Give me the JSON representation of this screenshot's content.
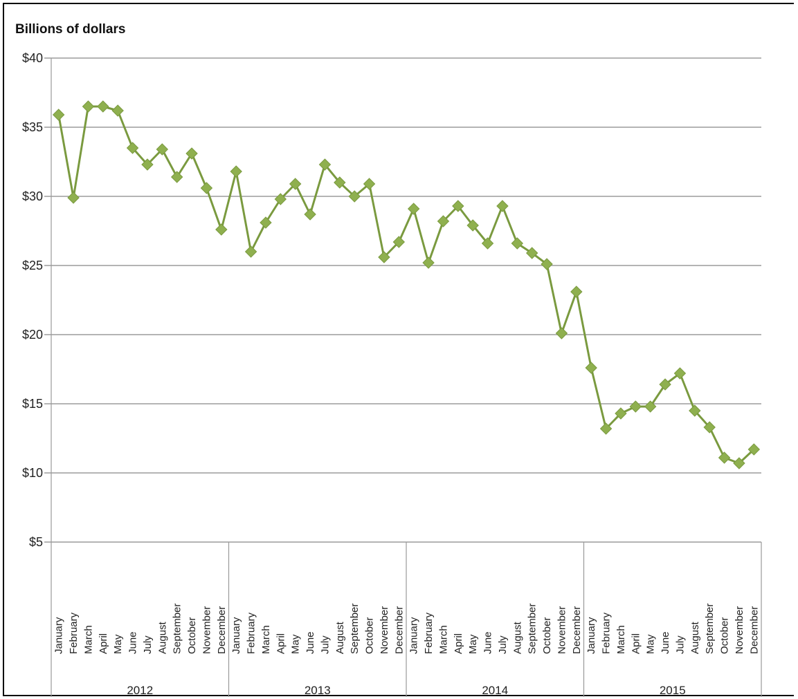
{
  "chart_data": {
    "type": "line",
    "ylabel": "Billions of dollars",
    "ylim": [
      5,
      40
    ],
    "yticks": [
      "$5",
      "$10",
      "$15",
      "$20",
      "$25",
      "$30",
      "$35",
      "$40"
    ],
    "grid": true,
    "colors": {
      "line": "#7a9a3f",
      "marker": "#8fb04f",
      "grid": "#888888",
      "axis": "#999999"
    },
    "groups": [
      {
        "year": "2012",
        "months": [
          "January",
          "February",
          "March",
          "April",
          "May",
          "June",
          "July",
          "August",
          "September",
          "October",
          "November",
          "December"
        ]
      },
      {
        "year": "2013",
        "months": [
          "January",
          "February",
          "March",
          "April",
          "May",
          "June",
          "July",
          "August",
          "September",
          "October",
          "November",
          "December"
        ]
      },
      {
        "year": "2014",
        "months": [
          "January",
          "February",
          "March",
          "April",
          "May",
          "June",
          "July",
          "August",
          "September",
          "October",
          "November",
          "December"
        ]
      },
      {
        "year": "2015",
        "months": [
          "January",
          "February",
          "March",
          "April",
          "May",
          "June",
          "July",
          "August",
          "September",
          "October",
          "November",
          "December"
        ]
      }
    ],
    "series": [
      {
        "values": [
          35.9,
          29.9,
          36.5,
          36.5,
          36.2,
          33.5,
          32.3,
          33.4,
          31.4,
          33.1,
          30.6,
          27.6,
          31.8,
          26.0,
          28.1,
          29.8,
          30.9,
          28.7,
          32.3,
          31.0,
          30.0,
          30.9,
          25.6,
          26.7,
          29.1,
          25.2,
          28.2,
          29.3,
          27.9,
          26.6,
          29.3,
          26.6,
          25.9,
          25.1,
          20.1,
          23.1,
          17.6,
          13.2,
          14.3,
          14.8,
          14.8,
          16.4,
          17.2,
          14.5,
          13.3,
          11.1,
          10.7,
          11.7
        ]
      }
    ]
  }
}
